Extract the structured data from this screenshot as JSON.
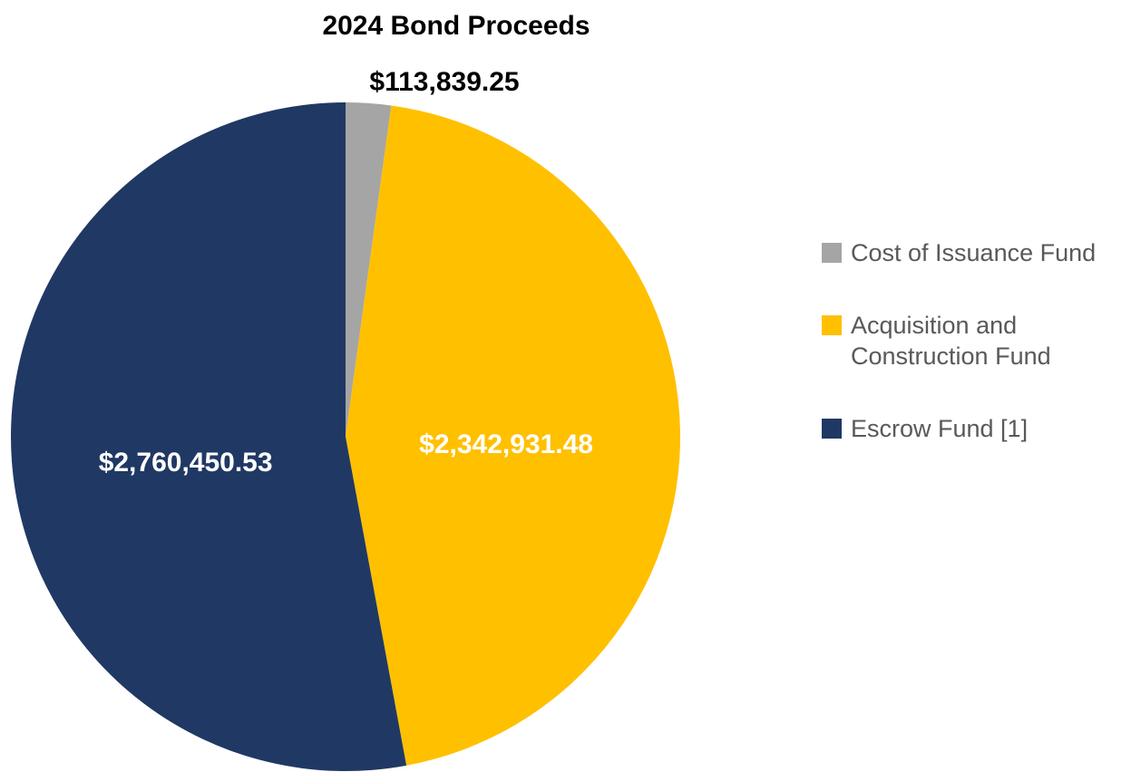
{
  "chart_data": {
    "type": "pie",
    "title": "2024 Bond Proceeds",
    "categories": [
      "Cost of Issuance Fund",
      "Acquisition and Construction Fund",
      "Escrow Fund [1]"
    ],
    "values": [
      113839.25,
      2342931.48,
      2760450.53
    ],
    "value_labels": [
      "$113,839.25",
      "$2,342,931.48",
      "$2,760,450.53"
    ],
    "colors": [
      "#a5a5a5",
      "#ffc000",
      "#203864"
    ],
    "legend": "right"
  }
}
